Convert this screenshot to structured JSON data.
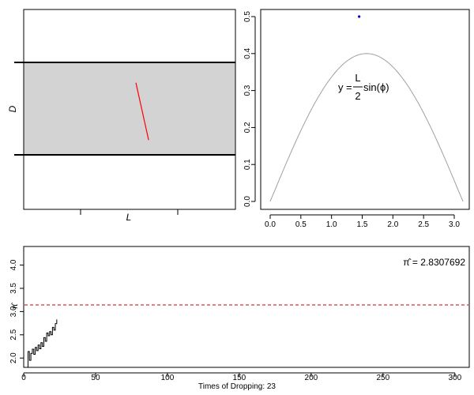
{
  "chart_data": [
    {
      "type": "diagram",
      "panel": "needle-board",
      "xlabel": "L",
      "ylabel": "D",
      "band_fill": "#d3d3d3",
      "needle_color": "#ff0000",
      "needle": {
        "x0": 0.53,
        "y0": 0.22,
        "x1": 0.59,
        "y1": 0.84
      }
    },
    {
      "type": "line",
      "panel": "sine-curve",
      "xlim": [
        0,
        3.14159
      ],
      "ylim": [
        0,
        0.5
      ],
      "x_ticks": [
        "0.0",
        "0.5",
        "1.0",
        "1.5",
        "2.0",
        "2.5",
        "3.0"
      ],
      "y_ticks": [
        "0.0",
        "0.1",
        "0.2",
        "0.3",
        "0.4",
        "0.5"
      ],
      "curve": {
        "amplitude": 0.4,
        "color": "#a0a0a0"
      },
      "point": {
        "x": 1.45,
        "y": 0.5,
        "color": "#0000cc"
      },
      "annotation": {
        "lhs": "y",
        "num": "L",
        "den": "2",
        "fn": "sin(",
        "var": "ϕ",
        "close": ")"
      }
    },
    {
      "type": "step",
      "panel": "pi-estimate",
      "xlabel_prefix": "Times of Dropping:",
      "drops": "23",
      "ylabel": "π̂",
      "xlim": [
        0,
        310
      ],
      "ylim": [
        1.8,
        4.4
      ],
      "x_ticks": [
        "0",
        "50",
        "100",
        "150",
        "200",
        "250",
        "300"
      ],
      "y_ticks": [
        "2.0",
        "2.5",
        "3.0",
        "3.5",
        "4.0"
      ],
      "reference_value": 3.14159,
      "reference_color": "#cc0000",
      "estimate_label": {
        "lhs": "π̂",
        "value": "2.8307692"
      },
      "x": [
        3,
        4,
        5,
        6,
        7,
        8,
        9,
        10,
        11,
        12,
        13,
        14,
        15,
        16,
        17,
        18,
        19,
        20,
        21,
        22,
        23
      ],
      "y": [
        2.14,
        1.95,
        2.1,
        2.19,
        2.08,
        2.23,
        2.16,
        2.28,
        2.2,
        2.33,
        2.25,
        2.44,
        2.36,
        2.54,
        2.48,
        2.57,
        2.5,
        2.66,
        2.6,
        2.74,
        2.83
      ]
    }
  ]
}
